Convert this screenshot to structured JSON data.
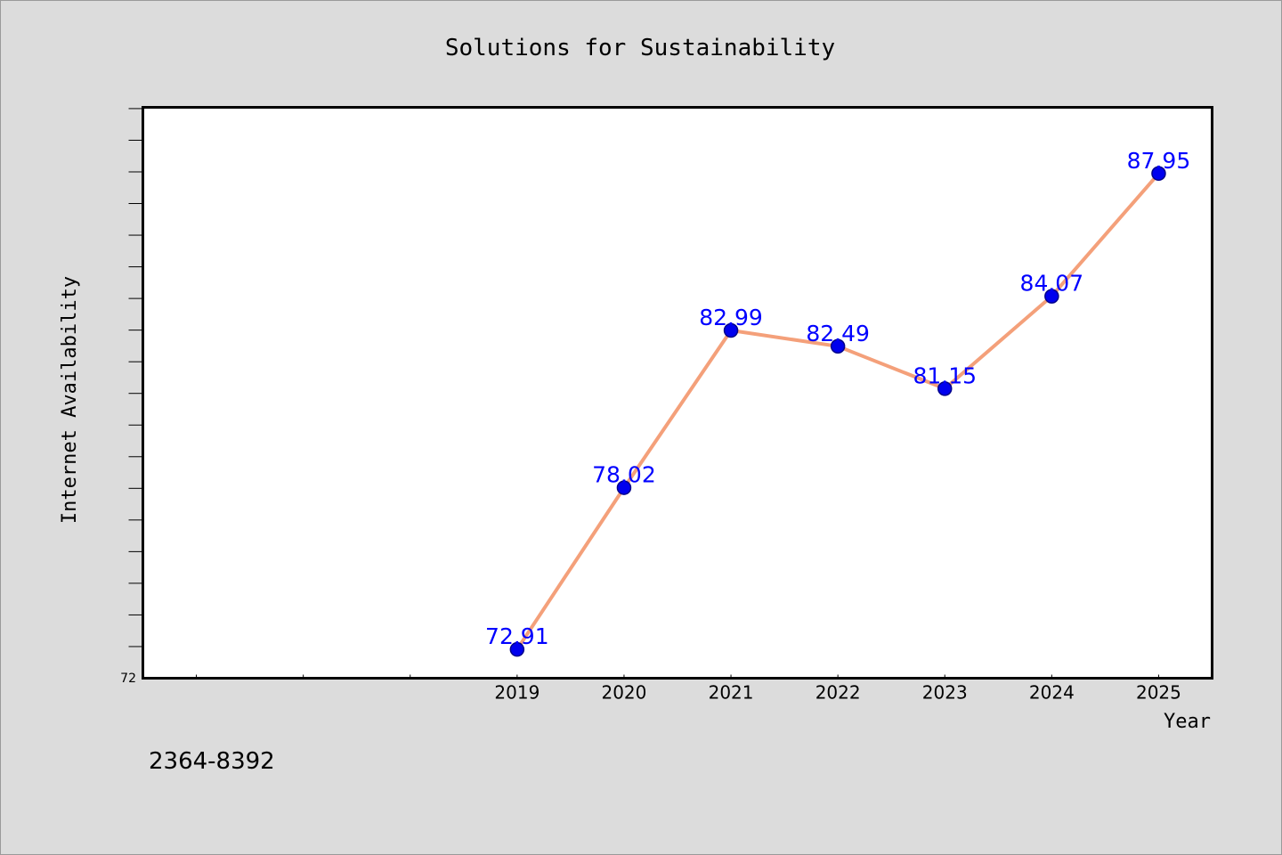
{
  "chart_data": {
    "type": "line",
    "title": "Solutions for Sustainability",
    "xlabel": "Year",
    "ylabel": "Internet Availability",
    "x": [
      2019,
      2020,
      2021,
      2022,
      2023,
      2024,
      2025
    ],
    "series": [
      {
        "values": [
          72.91,
          78.02,
          82.99,
          82.49,
          81.15,
          84.07,
          87.95
        ],
        "labels": [
          "72.91",
          "78.02",
          "82.99",
          "82.49",
          "81.15",
          "84.07",
          "87.95"
        ]
      }
    ],
    "x_ticks": [
      "2019",
      "2020",
      "2021",
      "2022",
      "2023",
      "2024",
      "2025"
    ],
    "xlim": [
      2015.5,
      2025.5
    ],
    "ylim": [
      72,
      90.04
    ],
    "y_min_label": "72",
    "y_minor_tick_step": 1,
    "x_minor_tick_step": 1,
    "grid": false,
    "colors": {
      "line": "#f4a07a",
      "marker": "#0000ee",
      "marker_edge": "#00008b",
      "label": "#0000ff",
      "plot_bg": "#ffffff",
      "figure_bg": "#dcdcdc"
    }
  },
  "footer_id": "2364-8392"
}
